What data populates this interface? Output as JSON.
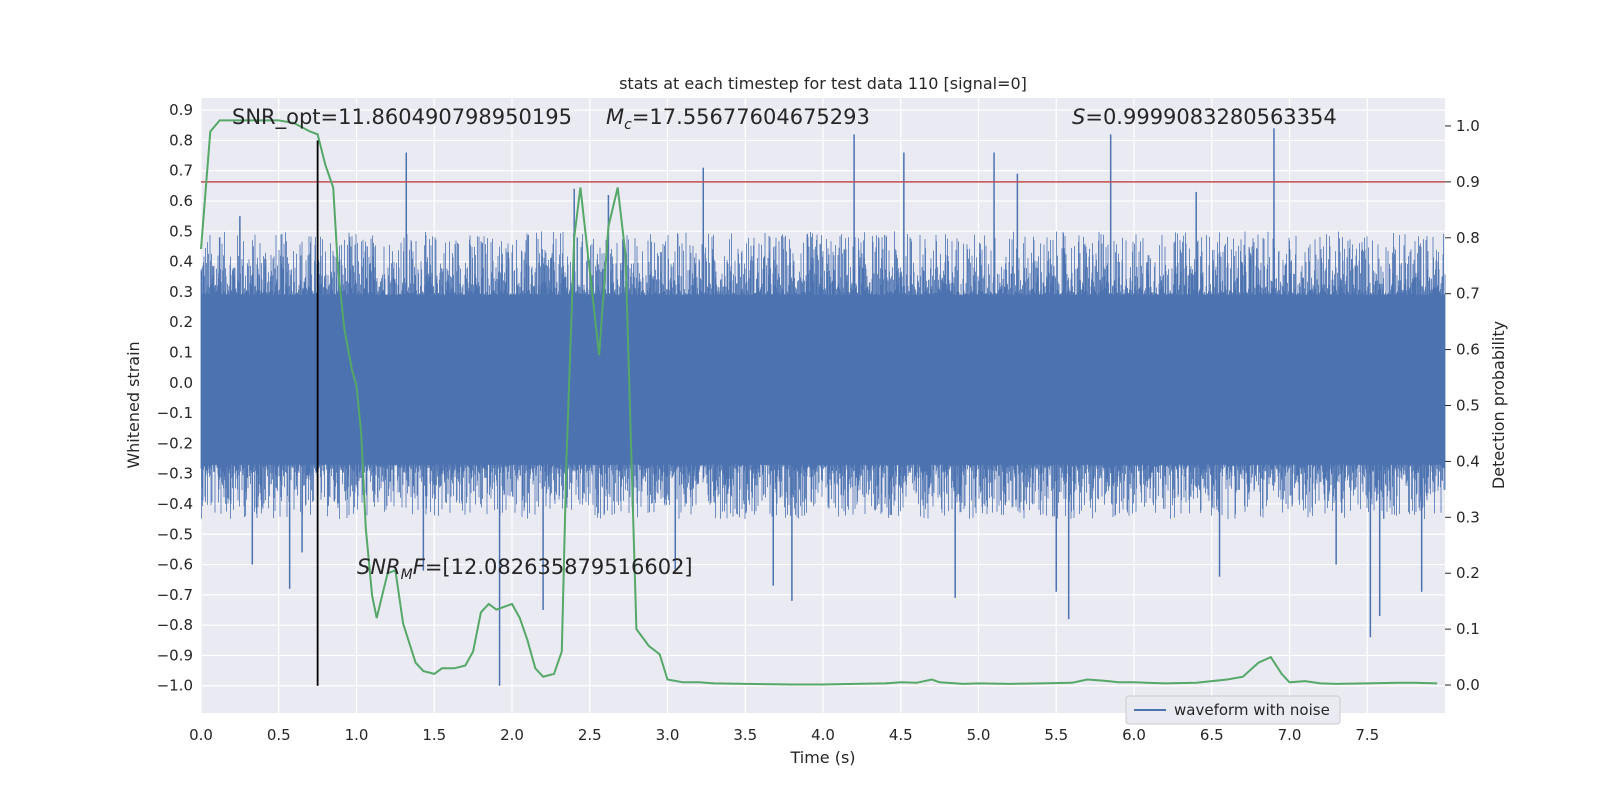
{
  "chart_data": {
    "type": "line",
    "title": "stats at each timestep for test data 110 [signal=0]",
    "xlabel": "Time (s)",
    "ylabel_left": "Whitened strain",
    "ylabel_right": "Detection probability",
    "xlim": [
      0.0,
      8.0
    ],
    "ylim_left": [
      -1.09,
      0.94
    ],
    "ylim_right": [
      -0.05,
      1.05
    ],
    "x_ticks": [
      0.0,
      0.5,
      1.0,
      1.5,
      2.0,
      2.5,
      3.0,
      3.5,
      4.0,
      4.5,
      5.0,
      5.5,
      6.0,
      6.5,
      7.0,
      7.5
    ],
    "x_tick_labels": [
      "0.0",
      "0.5",
      "1.0",
      "1.5",
      "2.0",
      "2.5",
      "3.0",
      "3.5",
      "4.0",
      "4.5",
      "5.0",
      "5.5",
      "6.0",
      "6.5",
      "7.0",
      "7.5"
    ],
    "y_left_ticks": [
      0.9,
      0.8,
      0.7,
      0.6,
      0.5,
      0.4,
      0.3,
      0.2,
      0.1,
      0.0,
      -0.1,
      -0.2,
      -0.3,
      -0.4,
      -0.5,
      -0.6,
      -0.7,
      -0.8,
      -0.9,
      -1.0
    ],
    "y_left_tick_labels": [
      "0.9",
      "0.8",
      "0.7",
      "0.6",
      "0.5",
      "0.4",
      "0.3",
      "0.2",
      "0.1",
      "0.0",
      "−0.1",
      "−0.2",
      "−0.3",
      "−0.4",
      "−0.5",
      "−0.6",
      "−0.7",
      "−0.8",
      "−0.9",
      "−1.0"
    ],
    "y_right_ticks": [
      1.0,
      0.9,
      0.8,
      0.7,
      0.6,
      0.5,
      0.4,
      0.3,
      0.2,
      0.1,
      0.0
    ],
    "y_right_tick_labels": [
      "1.0",
      "0.9",
      "0.8",
      "0.7",
      "0.6",
      "0.5",
      "0.4",
      "0.3",
      "0.2",
      "0.1",
      "0.0"
    ],
    "grid": true,
    "legend": {
      "placement": "lower-right",
      "entries": [
        "waveform with noise"
      ]
    },
    "series": [
      {
        "name": "waveform with noise",
        "axis": "left",
        "color": "#4c72b0",
        "kind": "noise",
        "core_range": [
          -0.27,
          0.29
        ],
        "typical_peak_range": [
          -0.45,
          0.5
        ],
        "spikes": [
          {
            "x": 0.12,
            "y": 0.48
          },
          {
            "x": 0.25,
            "y": 0.55
          },
          {
            "x": 0.33,
            "y": -0.6
          },
          {
            "x": 0.57,
            "y": -0.68
          },
          {
            "x": 0.65,
            "y": -0.56
          },
          {
            "x": 1.32,
            "y": 0.76
          },
          {
            "x": 1.43,
            "y": -0.62
          },
          {
            "x": 1.92,
            "y": -1.0
          },
          {
            "x": 2.2,
            "y": -0.75
          },
          {
            "x": 2.4,
            "y": 0.64
          },
          {
            "x": 2.62,
            "y": 0.62
          },
          {
            "x": 3.05,
            "y": -0.62
          },
          {
            "x": 3.23,
            "y": 0.71
          },
          {
            "x": 3.68,
            "y": -0.67
          },
          {
            "x": 3.8,
            "y": -0.72
          },
          {
            "x": 4.2,
            "y": 0.82
          },
          {
            "x": 4.52,
            "y": 0.76
          },
          {
            "x": 4.85,
            "y": -0.71
          },
          {
            "x": 5.1,
            "y": 0.76
          },
          {
            "x": 5.25,
            "y": 0.69
          },
          {
            "x": 5.5,
            "y": -0.69
          },
          {
            "x": 5.58,
            "y": -0.78
          },
          {
            "x": 5.85,
            "y": 0.82
          },
          {
            "x": 6.4,
            "y": 0.63
          },
          {
            "x": 6.55,
            "y": -0.64
          },
          {
            "x": 6.9,
            "y": 0.84
          },
          {
            "x": 7.3,
            "y": -0.6
          },
          {
            "x": 7.52,
            "y": -0.84
          },
          {
            "x": 7.58,
            "y": -0.77
          },
          {
            "x": 7.85,
            "y": -0.69
          }
        ]
      },
      {
        "axis": "right",
        "color": "#55a868",
        "x": [
          0.0,
          0.06,
          0.12,
          0.2,
          0.3,
          0.4,
          0.5,
          0.6,
          0.7,
          0.75,
          0.8,
          0.85,
          0.88,
          0.92,
          0.97,
          1.0,
          1.03,
          1.06,
          1.1,
          1.13,
          1.2,
          1.25,
          1.3,
          1.38,
          1.43,
          1.5,
          1.55,
          1.63,
          1.7,
          1.75,
          1.8,
          1.85,
          1.9,
          1.95,
          2.0,
          2.05,
          2.1,
          2.15,
          2.2,
          2.27,
          2.32,
          2.35,
          2.4,
          2.44,
          2.5,
          2.56,
          2.62,
          2.68,
          2.73,
          2.8,
          2.88,
          2.95,
          3.0,
          3.1,
          3.2,
          3.3,
          3.5,
          3.8,
          4.0,
          4.2,
          4.4,
          4.5,
          4.6,
          4.7,
          4.75,
          4.9,
          5.0,
          5.2,
          5.4,
          5.6,
          5.7,
          5.8,
          5.9,
          6.0,
          6.2,
          6.4,
          6.6,
          6.7,
          6.8,
          6.88,
          6.95,
          7.0,
          7.1,
          7.2,
          7.3,
          7.5,
          7.7,
          7.8,
          7.95
        ],
        "y": [
          0.78,
          0.99,
          1.01,
          1.01,
          1.01,
          1.01,
          1.01,
          1.005,
          0.99,
          0.985,
          0.93,
          0.89,
          0.75,
          0.64,
          0.565,
          0.535,
          0.45,
          0.28,
          0.16,
          0.12,
          0.2,
          0.205,
          0.11,
          0.04,
          0.025,
          0.02,
          0.03,
          0.03,
          0.035,
          0.06,
          0.13,
          0.145,
          0.135,
          0.14,
          0.145,
          0.12,
          0.08,
          0.03,
          0.015,
          0.02,
          0.06,
          0.4,
          0.8,
          0.89,
          0.74,
          0.59,
          0.82,
          0.89,
          0.77,
          0.1,
          0.07,
          0.055,
          0.01,
          0.005,
          0.005,
          0.003,
          0.002,
          0.001,
          0.001,
          0.002,
          0.003,
          0.005,
          0.004,
          0.01,
          0.005,
          0.002,
          0.003,
          0.002,
          0.003,
          0.004,
          0.01,
          0.008,
          0.005,
          0.005,
          0.003,
          0.004,
          0.01,
          0.015,
          0.04,
          0.05,
          0.02,
          0.005,
          0.007,
          0.003,
          0.002,
          0.003,
          0.004,
          0.004,
          0.003
        ]
      }
    ],
    "threshold": {
      "axis": "right",
      "y": 0.9,
      "color": "#c44e52"
    },
    "event_marker": {
      "x": 0.75,
      "y_from": -1.0,
      "y_to": 0.8,
      "color": "#000000"
    },
    "annotations": {
      "snr_opt": "SNR_opt=11.860490798950195",
      "mc_symbol": "M",
      "mc_sub": "c",
      "mc_value": "=17.55677604675293",
      "s_symbol": "S",
      "s_value": "=0.9999083280563354",
      "snr_mf_symbol": "SNR",
      "snr_mf_sub": "M",
      "snr_mf_symbol2": "F",
      "snr_mf_value": "=[12.082635879516602]"
    }
  }
}
